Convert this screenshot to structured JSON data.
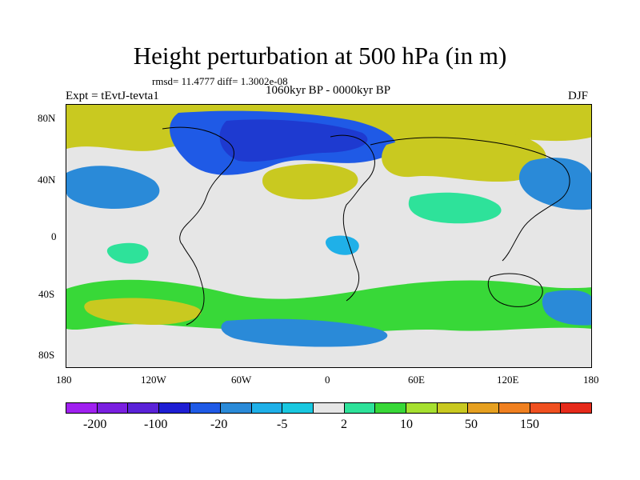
{
  "figure": {
    "title": "Height perturbation at 500 hPa (in m)",
    "stats_line": "rmsd= 11.4777 diff= 1.3002e-08",
    "subtitle": "1060kyr BP - 0000kyr BP",
    "experiment": "Expt = tEvtJ-tevta1",
    "season": "DJF"
  },
  "axes": {
    "lat_labels": [
      "80N",
      "40N",
      "0",
      "40S",
      "80S"
    ],
    "lon_labels": [
      "180",
      "120W",
      "60W",
      "0",
      "60E",
      "120E",
      "180"
    ]
  },
  "colorbar": {
    "colors": [
      "#a020f0",
      "#7a1fe0",
      "#5a22d8",
      "#1e1ed4",
      "#1f5ae6",
      "#2a8ad8",
      "#1fb0e8",
      "#19c8e0",
      "#e6e6e6",
      "#2ee29a",
      "#38d838",
      "#a6e030",
      "#c9c920",
      "#e6a020",
      "#f08020",
      "#f05020",
      "#e62a1a"
    ],
    "labels": [
      "-200",
      "-100",
      "-20",
      "-5",
      "2",
      "10",
      "50",
      "150"
    ]
  },
  "map_palette": {
    "neutral": "#e6e6e6",
    "deep_blue": "#1e3ad0",
    "mid_blue": "#1f5ae6",
    "light_blue": "#2a8ad8",
    "cyan": "#1fb0e8",
    "green": "#2ee29a",
    "lime": "#38d838",
    "olive": "#c9c920",
    "coast": "#000000"
  }
}
